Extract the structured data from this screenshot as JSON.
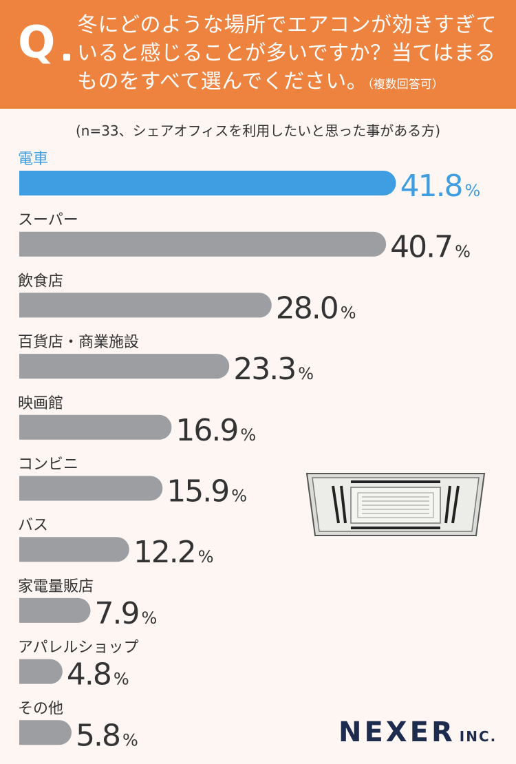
{
  "header": {
    "q_label": "Q",
    "question": "冬にどのような場所でエアコンが効きすぎていると感じることが多いですか？当てはまるものをすべて選んでください。",
    "note": "（複数回答可）"
  },
  "sample_note": "(n=33、シェアオフィスを利用したいと思った事がある方)",
  "logo": {
    "main": "NEXER",
    "sub": "INC."
  },
  "colors": {
    "header": "#ee823f",
    "highlight": "#3f9de2",
    "bar": "#9d9ea2",
    "text": "#333333",
    "background": "#fdf6f3"
  },
  "chart_data": {
    "type": "bar",
    "orientation": "horizontal",
    "categories": [
      "電車",
      "スーパー",
      "飲食店",
      "百貨店・商業施設",
      "映画館",
      "コンビニ",
      "バス",
      "家電量販店",
      "アパレルショップ",
      "その他"
    ],
    "values": [
      41.8,
      40.7,
      28.0,
      23.3,
      16.9,
      15.9,
      12.2,
      7.9,
      4.8,
      5.8
    ],
    "labels": [
      "41.8",
      "40.7",
      "28.0",
      "23.3",
      "16.9",
      "15.9",
      "12.2",
      "7.9",
      "4.8",
      "5.8"
    ],
    "unit": "%",
    "highlight_index": 0
  }
}
